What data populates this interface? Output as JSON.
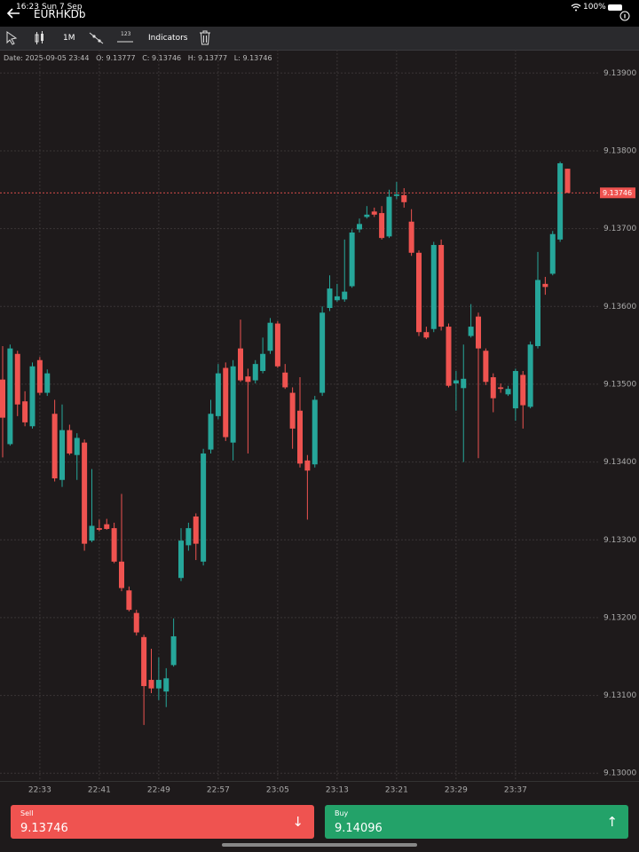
{
  "status_bar": {
    "time": "16:23",
    "date": "Sun 7 Sep",
    "battery": "100%"
  },
  "header": {
    "title": "EURHKDb"
  },
  "toolbar": {
    "timeframe": "1M",
    "tool": "123",
    "indicators": "Indicators"
  },
  "info_bar": {
    "items": [
      "Date: 2025-09-05 23:44",
      "O: 9.13777",
      "C: 9.13746",
      "H: 9.13777",
      "L: 9.13746"
    ]
  },
  "chart_data": {
    "type": "candlestick",
    "categories": [
      null,
      null,
      null,
      null,
      null,
      "22:33",
      null,
      null,
      null,
      null,
      null,
      null,
      null,
      "22:41",
      null,
      null,
      null,
      null,
      null,
      null,
      null,
      "22:49",
      null,
      null,
      null,
      null,
      null,
      null,
      null,
      "22:57",
      null,
      null,
      null,
      null,
      null,
      null,
      null,
      "23:05",
      null,
      null,
      null,
      null,
      null,
      null,
      null,
      "23:13",
      null,
      null,
      null,
      null,
      null,
      null,
      null,
      "23:21",
      null,
      null,
      null,
      null,
      null,
      null,
      null,
      "23:29",
      null,
      null,
      null,
      null,
      null,
      null,
      null,
      "23:37",
      null,
      null,
      null,
      null,
      null,
      null,
      null
    ],
    "open": [
      9.13506,
      9.13423,
      9.13539,
      9.13478,
      9.13446,
      9.13531,
      9.13489,
      9.13462,
      9.13377,
      9.13441,
      9.13409,
      9.13425,
      9.13299,
      9.13315,
      9.1332,
      9.13315,
      9.13272,
      9.13235,
      9.13206,
      9.13175,
      9.1312,
      9.13109,
      9.13105,
      9.13139,
      9.13251,
      9.13293,
      9.1333,
      9.13272,
      9.13416,
      9.13459,
      9.13521,
      9.13425,
      9.13546,
      9.1351,
      9.13505,
      9.13517,
      9.13543,
      9.13578,
      9.13515,
      9.13489,
      9.13466,
      9.13402,
      9.13397,
      9.13489,
      9.13598,
      9.13608,
      9.13609,
      9.13626,
      9.13699,
      9.13715,
      9.13722,
      9.1372,
      9.1369,
      9.13742,
      9.13743,
      9.13709,
      9.13669,
      9.13567,
      9.13571,
      9.13679,
      9.13574,
      9.13501,
      9.13495,
      9.13562,
      9.13587,
      9.13543,
      9.13509,
      9.13496,
      9.13487,
      9.13469,
      9.13512,
      9.13471,
      9.13549,
      9.13629,
      9.13642,
      9.13686,
      9.13777
    ],
    "high": [
      9.13549,
      9.13551,
      9.13543,
      9.13491,
      9.13528,
      9.13535,
      9.13519,
      9.1348,
      9.13474,
      9.13448,
      9.13437,
      9.13429,
      9.13391,
      9.13326,
      9.13327,
      9.13322,
      9.13359,
      9.1324,
      9.1321,
      9.13178,
      9.1316,
      9.13149,
      9.13135,
      9.13199,
      9.13315,
      9.13322,
      9.13334,
      9.13417,
      9.1348,
      9.13526,
      9.13528,
      9.13531,
      9.13583,
      9.1352,
      9.13531,
      9.1356,
      9.13585,
      9.13581,
      9.13526,
      9.13496,
      9.13509,
      9.13409,
      9.13485,
      9.136,
      9.1364,
      9.13629,
      9.13686,
      9.13699,
      9.13713,
      9.13729,
      9.13727,
      9.13729,
      9.1375,
      9.1376,
      9.13752,
      9.13725,
      9.13672,
      9.13574,
      9.13683,
      9.13686,
      9.13578,
      9.13517,
      9.13551,
      9.13603,
      9.13592,
      9.13546,
      9.13514,
      9.13501,
      9.13498,
      9.1352,
      9.13517,
      9.13555,
      9.1367,
      9.13638,
      9.13697,
      9.13786,
      9.13777
    ],
    "low": [
      9.13406,
      9.13421,
      9.13459,
      9.13446,
      9.13443,
      9.13486,
      9.13485,
      9.13375,
      9.13368,
      9.13409,
      9.13377,
      9.13286,
      9.13297,
      9.13311,
      9.13313,
      9.1327,
      9.13234,
      9.13208,
      9.13177,
      9.13062,
      9.13103,
      9.13094,
      9.13085,
      9.13137,
      9.13247,
      9.13286,
      9.13274,
      9.13267,
      9.13411,
      9.13455,
      9.13427,
      9.13402,
      9.13503,
      9.13411,
      9.13501,
      9.13514,
      9.13539,
      9.13521,
      9.13494,
      9.13417,
      9.13393,
      9.13326,
      9.13393,
      9.13485,
      9.13594,
      9.13606,
      9.13606,
      9.13624,
      9.13695,
      9.13713,
      9.13715,
      9.13686,
      9.13688,
      9.13738,
      9.13727,
      9.13665,
      9.13562,
      9.13558,
      9.13567,
      9.13569,
      9.13496,
      9.13466,
      9.134,
      9.1356,
      9.13405,
      9.13499,
      9.13464,
      9.13489,
      9.13485,
      9.13453,
      9.13443,
      9.13469,
      9.13546,
      9.13615,
      9.1364,
      9.13683,
      9.13746
    ],
    "close": [
      9.13457,
      9.13546,
      9.13474,
      9.13451,
      9.13523,
      9.13489,
      9.13514,
      9.13379,
      9.13441,
      9.13411,
      9.13431,
      9.13295,
      9.13318,
      9.13313,
      9.13314,
      9.13272,
      9.13238,
      9.1321,
      9.13181,
      9.13112,
      9.13109,
      9.1312,
      9.13122,
      9.13176,
      9.13299,
      9.13315,
      9.13295,
      9.13411,
      9.13462,
      9.13514,
      9.13432,
      9.13523,
      9.13505,
      9.13503,
      9.13526,
      9.13539,
      9.13579,
      9.13523,
      9.13496,
      9.13443,
      9.13398,
      9.13389,
      9.1348,
      9.13592,
      9.13623,
      9.13613,
      9.13619,
      9.13695,
      9.13706,
      9.13718,
      9.13718,
      9.13688,
      9.13741,
      9.13744,
      9.13734,
      9.13669,
      9.13567,
      9.1356,
      9.13679,
      9.13574,
      9.13498,
      9.13505,
      9.13507,
      9.13574,
      9.13546,
      9.13503,
      9.13482,
      9.13494,
      9.13494,
      9.13517,
      9.13473,
      9.13551,
      9.13634,
      9.13625,
      9.13693,
      9.13784,
      9.13746
    ],
    "up_color": "#26a69a",
    "down_color": "#ef5350",
    "ylim": [
      9.1299,
      9.1393
    ],
    "yticks": [
      {
        "value": 9.13,
        "label": "9.13000"
      },
      {
        "value": 9.131,
        "label": "9.13100"
      },
      {
        "value": 9.132,
        "label": "9.13200"
      },
      {
        "value": 9.133,
        "label": "9.13300"
      },
      {
        "value": 9.134,
        "label": "9.13400"
      },
      {
        "value": 9.135,
        "label": "9.13500"
      },
      {
        "value": 9.136,
        "label": "9.13600"
      },
      {
        "value": 9.137,
        "label": "9.13700"
      },
      {
        "value": 9.138,
        "label": "9.13800"
      },
      {
        "value": 9.139,
        "label": "9.13900"
      }
    ],
    "last_price": 9.13746,
    "grid": true
  },
  "order_buttons": {
    "sell": {
      "label": "Sell",
      "price": "9.13746"
    },
    "buy": {
      "label": "Buy",
      "price": "9.14096"
    }
  }
}
